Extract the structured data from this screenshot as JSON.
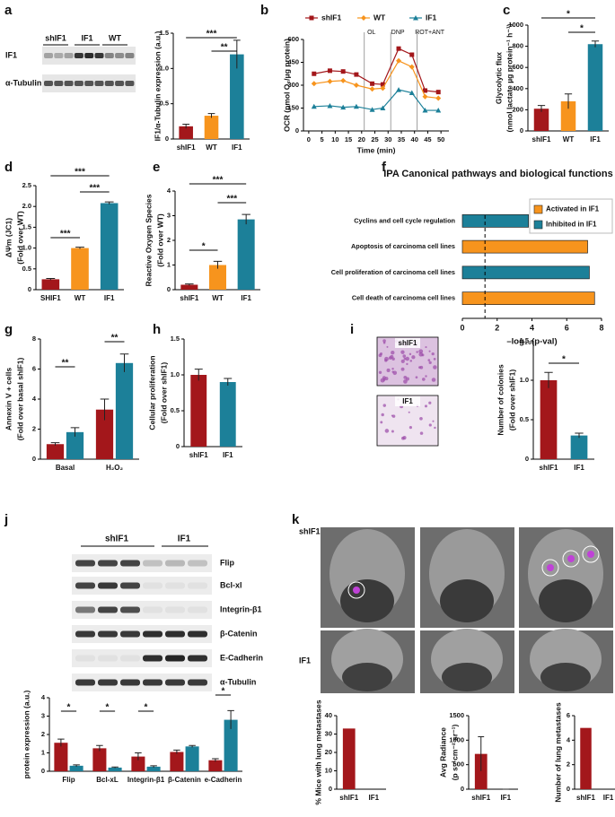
{
  "chart_data": [
    {
      "panel": "a",
      "type": "bar",
      "ylabel": [
        "IF1/α-Tubulin expression (a.u.)"
      ],
      "categories": [
        "shIF1",
        "WT",
        "IF1"
      ],
      "values": [
        0.18,
        0.33,
        1.2
      ],
      "errors": [
        0.03,
        0.03,
        0.2
      ],
      "colors": [
        "#a3171b",
        "#f7941d",
        "#1c8099"
      ],
      "ylim": [
        0,
        1.5
      ],
      "yticks": [
        0,
        0.5,
        {
          "value": 1,
          "label": "1.0"
        },
        1.5
      ],
      "significance": [
        "***",
        "**"
      ]
    },
    {
      "panel": "b",
      "type": "line",
      "xlabel": "Time (min)",
      "ylabel": [
        "OCR (pmol O₂/μg protein)"
      ],
      "x": [
        2,
        8,
        13,
        18,
        24,
        28,
        34,
        39,
        44,
        49
      ],
      "series": [
        {
          "name": "shIF1",
          "color": "#a3171b",
          "marker": "square",
          "values": [
            375,
            395,
            390,
            370,
            310,
            305,
            540,
            500,
            265,
            255
          ]
        },
        {
          "name": "WT",
          "color": "#f7941d",
          "marker": "diamond",
          "values": [
            310,
            325,
            330,
            300,
            275,
            280,
            460,
            420,
            225,
            215
          ]
        },
        {
          "name": "IF1",
          "color": "#1c8099",
          "marker": "triangle",
          "values": [
            160,
            165,
            155,
            160,
            140,
            150,
            270,
            250,
            135,
            135
          ]
        }
      ],
      "xlim": [
        -2,
        53
      ],
      "ylim": [
        0,
        600
      ],
      "xticks": [
        0,
        5,
        10,
        15,
        20,
        25,
        30,
        35,
        40,
        45,
        50
      ],
      "yticks": [
        0,
        150,
        300,
        450,
        600
      ],
      "annotations": [
        {
          "label": "OL",
          "x": 21
        },
        {
          "label": "DNP",
          "x": 31
        },
        {
          "label": "ROT+ANT",
          "x": 41
        }
      ]
    },
    {
      "panel": "c",
      "type": "bar",
      "ylabel": [
        "Glycolytic flux",
        "(nmol lactate µg protein⁻¹ h⁻¹)"
      ],
      "categories": [
        "shIF1",
        "WT",
        "IF1"
      ],
      "values": [
        210,
        280,
        820
      ],
      "errors": [
        30,
        70,
        30
      ],
      "colors": [
        "#a3171b",
        "#f7941d",
        "#1c8099"
      ],
      "ylim": [
        0,
        1000
      ],
      "yticks": [
        0,
        200,
        400,
        600,
        800,
        1000
      ],
      "significance": [
        "*",
        "*"
      ]
    },
    {
      "panel": "d",
      "type": "bar",
      "ylabel": [
        "ΔΨm (JC1)",
        "(Fold over WT)"
      ],
      "categories": [
        "SHIF1",
        "WT",
        "IF1"
      ],
      "values": [
        0.25,
        1.0,
        2.08
      ],
      "errors": [
        0.02,
        0.02,
        0.03
      ],
      "colors": [
        "#a3171b",
        "#f7941d",
        "#1c8099"
      ],
      "ylim": [
        0,
        2.5
      ],
      "yticks": [
        0,
        0.5,
        {
          "value": 1,
          "label": "1.0"
        },
        1.5,
        {
          "value": 2,
          "label": "2.0"
        },
        2.5
      ],
      "significance": [
        "***",
        "***",
        "***"
      ]
    },
    {
      "panel": "e",
      "type": "bar",
      "ylabel": [
        "Reactive Oxygen Species",
        "(Fold over WT)"
      ],
      "categories": [
        "shIF1",
        "WT",
        "IF1"
      ],
      "values": [
        0.2,
        1.0,
        2.85
      ],
      "errors": [
        0.03,
        0.15,
        0.2
      ],
      "colors": [
        "#a3171b",
        "#f7941d",
        "#1c8099"
      ],
      "ylim": [
        0,
        4
      ],
      "yticks": [
        0,
        1,
        2,
        3,
        4
      ],
      "significance": [
        "*",
        "***",
        "***"
      ]
    },
    {
      "panel": "f",
      "type": "hbar",
      "title": "IPA Canonical pathways and biological functions",
      "xlabel": "–log₁₀(p-val)",
      "categories": [
        "Cyclins and cell cycle regulation",
        "Apoptosis of carcinoma cell lines",
        "Cell proliferation of carcinoma cell lines",
        "Cell death of carcinoma cell lines"
      ],
      "values": [
        3.8,
        7.2,
        7.3,
        7.6
      ],
      "colors": [
        "#1c8099",
        "#f7941d",
        "#1c8099",
        "#f7941d"
      ],
      "series": [
        {
          "name": "Activated in IF1",
          "color": "#f7941d"
        },
        {
          "name": "Inhibited in IF1",
          "color": "#1c8099"
        }
      ],
      "threshold": 1.3,
      "xlim": [
        0,
        8
      ],
      "xticks": [
        0,
        2,
        4,
        6,
        8
      ]
    },
    {
      "panel": "g",
      "type": "bar",
      "ylabel": [
        "Annexin V + cells",
        "(Fold over basal shIF1)"
      ],
      "categories": [
        "Basal",
        "H₂O₂"
      ],
      "series": [
        {
          "color": "#a3171b",
          "values": [
            1.0,
            3.3
          ],
          "errors": [
            0.1,
            0.7
          ]
        },
        {
          "color": "#1c8099",
          "values": [
            1.8,
            6.4
          ],
          "errors": [
            0.3,
            0.6
          ]
        }
      ],
      "ylim": [
        0,
        8
      ],
      "yticks": [
        0,
        2,
        4,
        6,
        8
      ],
      "significance": [
        "**",
        "**"
      ]
    },
    {
      "panel": "h",
      "type": "bar",
      "ylabel": [
        "Cellular proliferation",
        "(Fold over shIF1)"
      ],
      "categories": [
        "shIF1",
        "IF1"
      ],
      "values": [
        1.0,
        0.9
      ],
      "errors": [
        0.08,
        0.05
      ],
      "colors": [
        "#a3171b",
        "#1c8099"
      ],
      "ylim": [
        0,
        1.5
      ],
      "yticks": [
        0,
        0.5,
        {
          "value": 1,
          "label": "1.0"
        },
        1.5
      ]
    },
    {
      "panel": "i",
      "type": "bar",
      "ylabel": [
        "Number of colonies",
        "(Fold over shIF1)"
      ],
      "categories": [
        "shIF1",
        "IF1"
      ],
      "values": [
        1.0,
        0.3
      ],
      "errors": [
        0.1,
        0.03
      ],
      "colors": [
        "#a3171b",
        "#1c8099"
      ],
      "ylim": [
        0,
        1.5
      ],
      "yticks": [
        0,
        0.5,
        {
          "value": 1,
          "label": "1.0"
        },
        1.5
      ],
      "significance": [
        "*"
      ]
    },
    {
      "panel": "j",
      "type": "bar",
      "ylabel": [
        "protein expression (a.u.)"
      ],
      "categories": [
        "Flip",
        "Bcl-xL",
        "Integrin-β1",
        "β-Catenin",
        "e-Cadherin"
      ],
      "series": [
        {
          "color": "#a3171b",
          "values": [
            1.55,
            1.25,
            0.8,
            1.05,
            0.6
          ],
          "errors": [
            0.2,
            0.15,
            0.2,
            0.1,
            0.08
          ]
        },
        {
          "color": "#1c8099",
          "values": [
            0.3,
            0.2,
            0.25,
            1.35,
            2.8
          ],
          "errors": [
            0.05,
            0.03,
            0.05,
            0.05,
            0.5
          ]
        }
      ],
      "ylim": [
        0,
        4
      ],
      "yticks": [
        0,
        1,
        2,
        3,
        4
      ],
      "significance": [
        "*",
        "*",
        "*",
        "*"
      ]
    },
    {
      "panel": "k",
      "type": "bar",
      "ylabel": [
        "% Mice with lung metastases"
      ],
      "categories": [
        "shIF1",
        "IF1"
      ],
      "values": [
        33,
        0
      ],
      "colors": [
        "#a3171b",
        "#1c8099"
      ],
      "ylim": [
        0,
        40
      ],
      "yticks": [
        0,
        10,
        20,
        30,
        40
      ]
    },
    {
      "type": "bar",
      "ylabel": [
        "Avg Radiance",
        "(p s⁻¹cm⁻² sr⁻¹)"
      ],
      "categories": [
        "shIF1",
        "IF1"
      ],
      "values": [
        720,
        0
      ],
      "errors": [
        350,
        0
      ],
      "colors": [
        "#a3171b",
        "#1c8099"
      ],
      "ylim": [
        0,
        1500
      ],
      "yticks": [
        0,
        500,
        1000,
        1500
      ]
    },
    {
      "type": "bar",
      "ylabel": [
        "Number of lung metastases"
      ],
      "categories": [
        "shIF1",
        "IF1"
      ],
      "values": [
        5,
        0
      ],
      "colors": [
        "#a3171b",
        "#1c8099"
      ],
      "ylim": [
        0,
        6
      ],
      "yticks": [
        0,
        2,
        4,
        6
      ]
    }
  ],
  "blot_a": {
    "lanes": [
      "shIF1",
      "IF1",
      "WT"
    ],
    "rows": [
      "IF1",
      "α-Tubulin"
    ]
  },
  "blot_j": {
    "lanes": [
      "shIF1",
      "IF1"
    ],
    "rows": [
      "Flip",
      "Bcl-xl",
      "Integrin-β1",
      "β-Catenin",
      "E-Cadherin",
      "α-Tubulin"
    ]
  },
  "images_i": [
    "shIF1",
    "IF1"
  ],
  "images_k": [
    "shIF1",
    "IF1"
  ]
}
